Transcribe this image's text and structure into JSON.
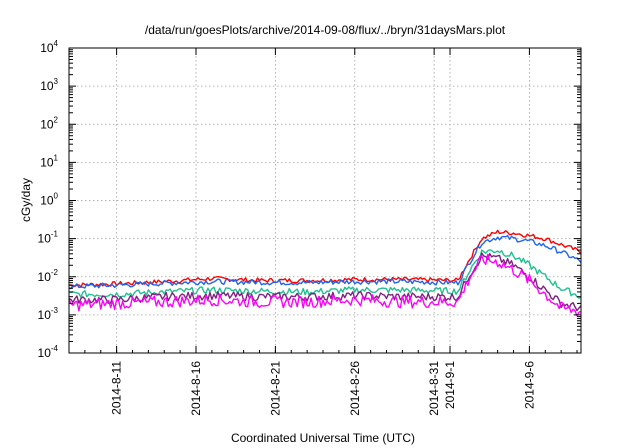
{
  "chart_data": {
    "type": "line",
    "title": "/data/run/goesPlots/archive/2014-09-08/flux/../bryn/31daysMars.plot",
    "xlabel": "Coordinated Universal Time (UTC)",
    "ylabel": "cGy/day",
    "yscale": "log",
    "ylim": [
      0.0001,
      10000
    ],
    "xlim": [
      "2014-08-08T00:00",
      "2014-09-09T06:00"
    ],
    "grid": true,
    "x_ticks": [
      {
        "label": "2014-8-11",
        "x": "2014-08-11"
      },
      {
        "label": "2014-8-16",
        "x": "2014-08-16"
      },
      {
        "label": "2014-8-21",
        "x": "2014-08-21"
      },
      {
        "label": "2014-8-26",
        "x": "2014-08-26"
      },
      {
        "label": "2014-8-31",
        "x": "2014-08-31"
      },
      {
        "label": "2014-9-1",
        "x": "2014-09-01"
      },
      {
        "label": "2014-9-6",
        "x": "2014-09-06"
      }
    ],
    "y_ticks": [
      {
        "base": "10",
        "exp": "-4",
        "value": 0.0001
      },
      {
        "base": "10",
        "exp": "-3",
        "value": 0.001
      },
      {
        "base": "10",
        "exp": "-2",
        "value": 0.01
      },
      {
        "base": "10",
        "exp": "-1",
        "value": 0.1
      },
      {
        "base": "10",
        "exp": "0",
        "value": 1
      },
      {
        "base": "10",
        "exp": "1",
        "value": 10
      },
      {
        "base": "10",
        "exp": "2",
        "value": 100
      },
      {
        "base": "10",
        "exp": "3",
        "value": 1000
      },
      {
        "base": "10",
        "exp": "4",
        "value": 10000
      }
    ],
    "series": [
      {
        "color": "#ff0000",
        "x": [
          "2014-08-08",
          "2014-08-11",
          "2014-08-14",
          "2014-08-17",
          "2014-08-20",
          "2014-08-23",
          "2014-08-26",
          "2014-08-29",
          "2014-09-01T12:00",
          "2014-09-02T06:00",
          "2014-09-03",
          "2014-09-04",
          "2014-09-05",
          "2014-09-06",
          "2014-09-07",
          "2014-09-08",
          "2014-09-09T06:00"
        ],
        "y": [
          0.006,
          0.0065,
          0.0075,
          0.009,
          0.008,
          0.008,
          0.0085,
          0.0085,
          0.008,
          0.03,
          0.1,
          0.15,
          0.14,
          0.12,
          0.1,
          0.07,
          0.045
        ]
      },
      {
        "color": "#1e64f0",
        "x": [
          "2014-08-08",
          "2014-08-11",
          "2014-08-14",
          "2014-08-17",
          "2014-08-20",
          "2014-08-23",
          "2014-08-26",
          "2014-08-29",
          "2014-09-01T12:00",
          "2014-09-02T06:00",
          "2014-09-03",
          "2014-09-04",
          "2014-09-05",
          "2014-09-06",
          "2014-09-07",
          "2014-09-08",
          "2014-09-09T06:00"
        ],
        "y": [
          0.0055,
          0.006,
          0.0068,
          0.0075,
          0.0072,
          0.007,
          0.0075,
          0.0075,
          0.007,
          0.025,
          0.08,
          0.11,
          0.1,
          0.085,
          0.065,
          0.045,
          0.025
        ]
      },
      {
        "color": "#20c090",
        "x": [
          "2014-08-08",
          "2014-08-11",
          "2014-08-14",
          "2014-08-17",
          "2014-08-20",
          "2014-08-23",
          "2014-08-26",
          "2014-08-29",
          "2014-09-01T12:00",
          "2014-09-02T06:00",
          "2014-09-03",
          "2014-09-04",
          "2014-09-05",
          "2014-09-06",
          "2014-09-07",
          "2014-09-08",
          "2014-09-09T06:00"
        ],
        "y": [
          0.0035,
          0.0035,
          0.004,
          0.0045,
          0.0042,
          0.004,
          0.0045,
          0.0045,
          0.0042,
          0.015,
          0.045,
          0.05,
          0.035,
          0.02,
          0.01,
          0.005,
          0.003
        ]
      },
      {
        "color": "#802080",
        "x": [
          "2014-08-08",
          "2014-08-11",
          "2014-08-14",
          "2014-08-17",
          "2014-08-20",
          "2014-08-23",
          "2014-08-26",
          "2014-08-29",
          "2014-09-01T12:00",
          "2014-09-02T06:00",
          "2014-09-03",
          "2014-09-04",
          "2014-09-05",
          "2014-09-06",
          "2014-09-07",
          "2014-09-08",
          "2014-09-09T06:00"
        ],
        "y": [
          0.0025,
          0.0025,
          0.003,
          0.0032,
          0.003,
          0.003,
          0.0032,
          0.003,
          0.003,
          0.012,
          0.035,
          0.03,
          0.02,
          0.01,
          0.0045,
          0.002,
          0.0015
        ]
      },
      {
        "color": "#ff00ff",
        "x": [
          "2014-08-08",
          "2014-08-11",
          "2014-08-14",
          "2014-08-17",
          "2014-08-20",
          "2014-08-23",
          "2014-08-26",
          "2014-08-29",
          "2014-09-01T12:00",
          "2014-09-02T06:00",
          "2014-09-03",
          "2014-09-04",
          "2014-09-05",
          "2014-09-06",
          "2014-09-07",
          "2014-09-08",
          "2014-09-09T06:00"
        ],
        "y": [
          0.0018,
          0.002,
          0.0022,
          0.0025,
          0.0022,
          0.0022,
          0.0025,
          0.0022,
          0.0022,
          0.01,
          0.028,
          0.025,
          0.015,
          0.008,
          0.0035,
          0.0015,
          0.0012
        ]
      }
    ]
  }
}
